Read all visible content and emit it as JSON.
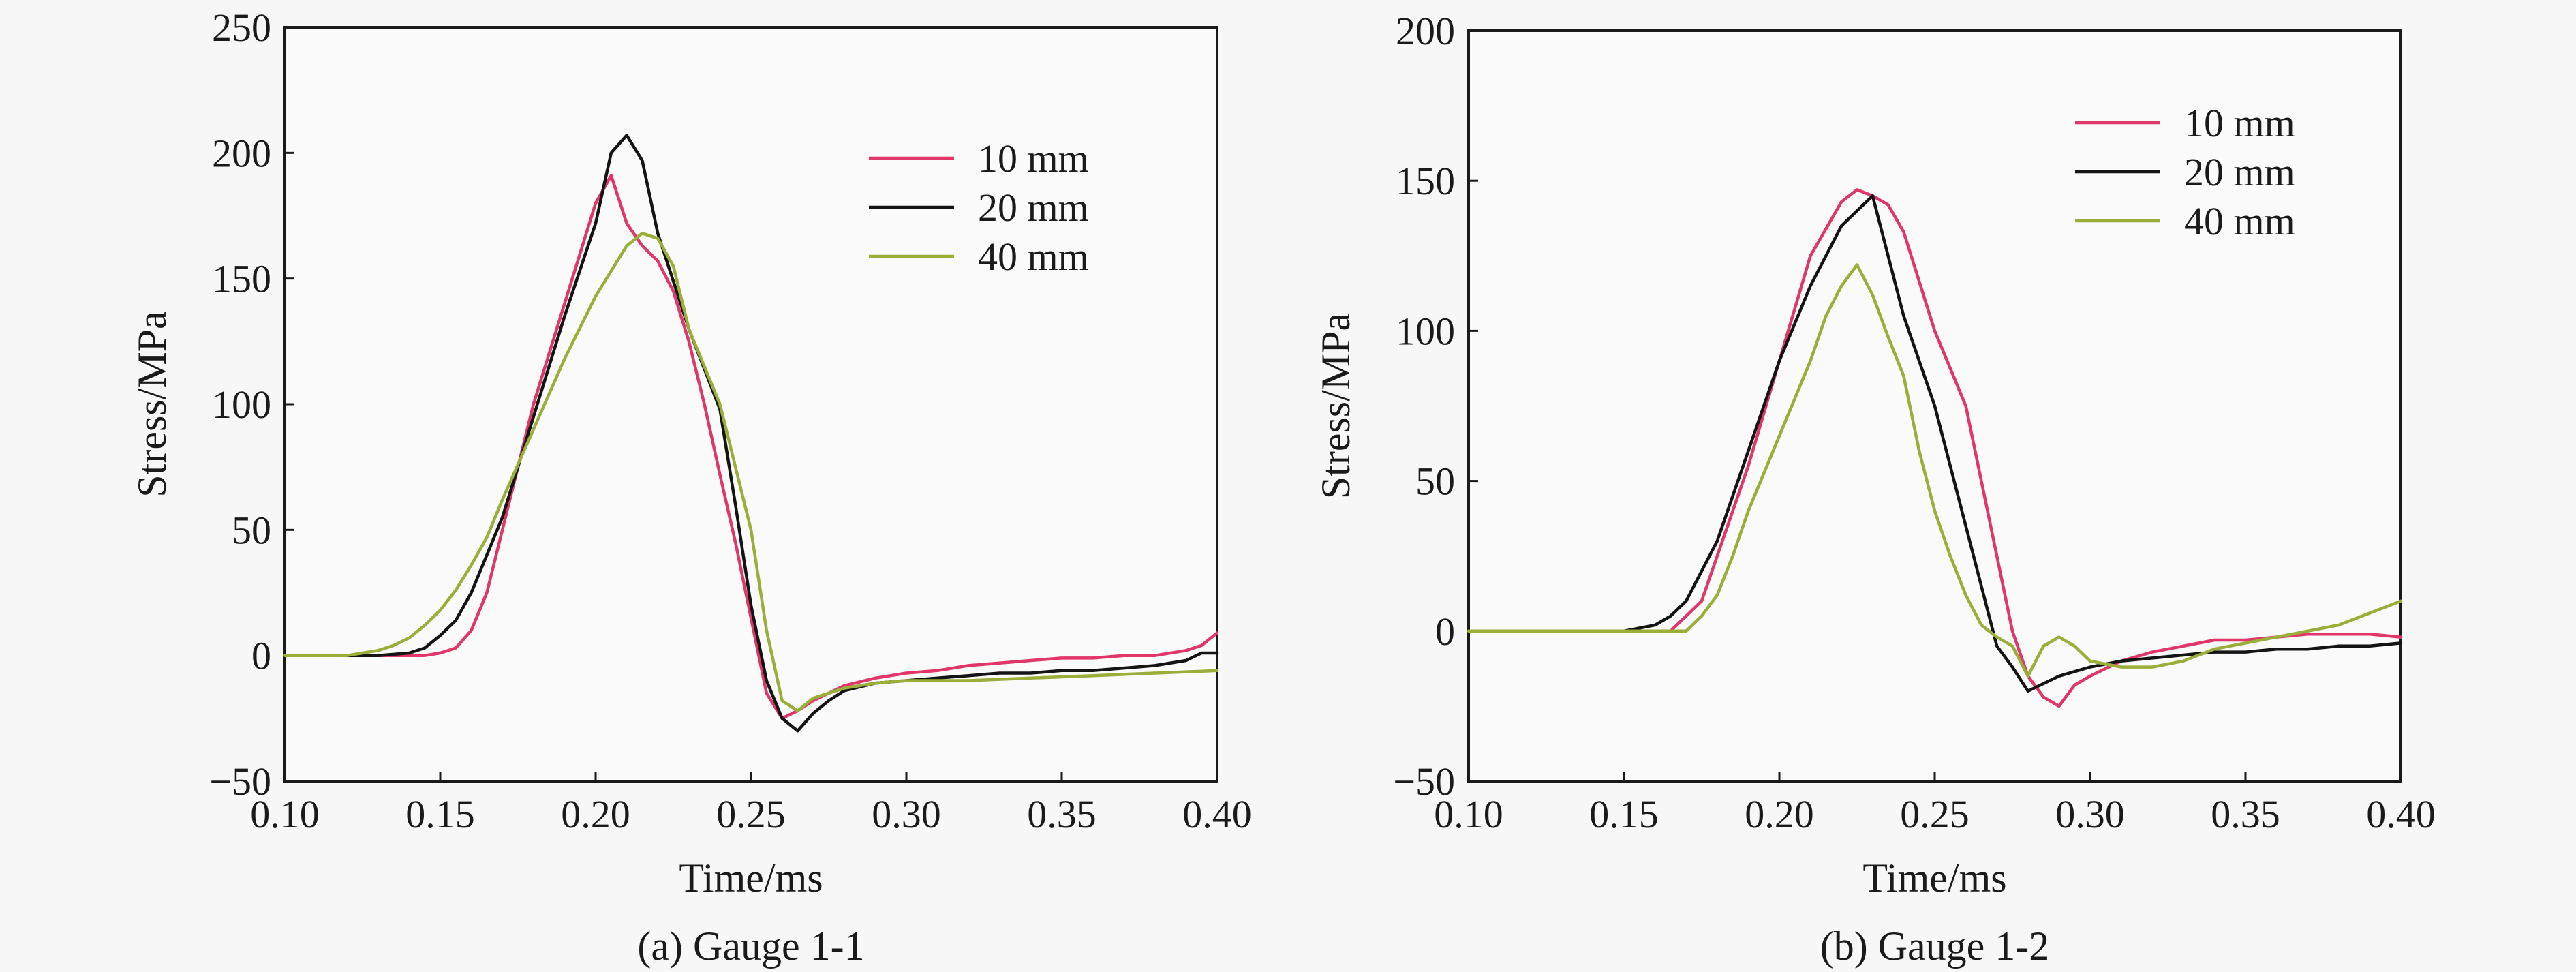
{
  "colors": {
    "10 mm": "#e0366a",
    "20 mm": "#141414",
    "40 mm": "#9aae3a"
  },
  "chart_data": [
    {
      "type": "line",
      "caption": "(a) Gauge 1-1",
      "xlabel": "Time/ms",
      "ylabel": "Stress/MPa",
      "xlim": [
        0.1,
        0.4
      ],
      "ylim": [
        -50,
        250
      ],
      "xticks": [
        "0.10",
        "0.15",
        "0.20",
        "0.25",
        "0.30",
        "0.35",
        "0.40"
      ],
      "yticks": [
        "−50",
        "0",
        "50",
        "100",
        "150",
        "200",
        "250"
      ],
      "grid": false,
      "legend_position": "top-right",
      "series": [
        {
          "name": "10 mm",
          "points": [
            [
              0.1,
              0
            ],
            [
              0.13,
              0
            ],
            [
              0.145,
              0
            ],
            [
              0.15,
              1
            ],
            [
              0.155,
              3
            ],
            [
              0.16,
              10
            ],
            [
              0.165,
              25
            ],
            [
              0.17,
              50
            ],
            [
              0.18,
              100
            ],
            [
              0.19,
              140
            ],
            [
              0.2,
              180
            ],
            [
              0.205,
              191
            ],
            [
              0.21,
              172
            ],
            [
              0.215,
              163
            ],
            [
              0.22,
              157
            ],
            [
              0.225,
              145
            ],
            [
              0.23,
              125
            ],
            [
              0.235,
              100
            ],
            [
              0.24,
              72
            ],
            [
              0.245,
              45
            ],
            [
              0.25,
              15
            ],
            [
              0.255,
              -15
            ],
            [
              0.26,
              -25
            ],
            [
              0.265,
              -22
            ],
            [
              0.27,
              -18
            ],
            [
              0.28,
              -12
            ],
            [
              0.29,
              -9
            ],
            [
              0.3,
              -7
            ],
            [
              0.31,
              -6
            ],
            [
              0.32,
              -4
            ],
            [
              0.33,
              -3
            ],
            [
              0.34,
              -2
            ],
            [
              0.35,
              -1
            ],
            [
              0.36,
              -1
            ],
            [
              0.37,
              0
            ],
            [
              0.38,
              0
            ],
            [
              0.39,
              2
            ],
            [
              0.395,
              4
            ],
            [
              0.4,
              9
            ]
          ]
        },
        {
          "name": "20 mm",
          "points": [
            [
              0.1,
              0
            ],
            [
              0.13,
              0
            ],
            [
              0.14,
              1
            ],
            [
              0.145,
              3
            ],
            [
              0.15,
              8
            ],
            [
              0.155,
              14
            ],
            [
              0.16,
              25
            ],
            [
              0.17,
              55
            ],
            [
              0.18,
              95
            ],
            [
              0.19,
              135
            ],
            [
              0.2,
              172
            ],
            [
              0.205,
              200
            ],
            [
              0.21,
              207
            ],
            [
              0.215,
              197
            ],
            [
              0.22,
              168
            ],
            [
              0.23,
              130
            ],
            [
              0.24,
              98
            ],
            [
              0.245,
              60
            ],
            [
              0.25,
              20
            ],
            [
              0.255,
              -10
            ],
            [
              0.26,
              -25
            ],
            [
              0.265,
              -30
            ],
            [
              0.27,
              -23
            ],
            [
              0.275,
              -18
            ],
            [
              0.28,
              -14
            ],
            [
              0.29,
              -11
            ],
            [
              0.3,
              -10
            ],
            [
              0.31,
              -9
            ],
            [
              0.32,
              -8
            ],
            [
              0.33,
              -7
            ],
            [
              0.34,
              -7
            ],
            [
              0.35,
              -6
            ],
            [
              0.36,
              -6
            ],
            [
              0.37,
              -5
            ],
            [
              0.38,
              -4
            ],
            [
              0.39,
              -2
            ],
            [
              0.395,
              1
            ],
            [
              0.4,
              1
            ]
          ]
        },
        {
          "name": "40 mm",
          "points": [
            [
              0.1,
              0
            ],
            [
              0.12,
              0
            ],
            [
              0.125,
              1
            ],
            [
              0.13,
              2
            ],
            [
              0.135,
              4
            ],
            [
              0.14,
              7
            ],
            [
              0.145,
              12
            ],
            [
              0.15,
              18
            ],
            [
              0.155,
              26
            ],
            [
              0.16,
              36
            ],
            [
              0.165,
              47
            ],
            [
              0.17,
              62
            ],
            [
              0.18,
              90
            ],
            [
              0.19,
              118
            ],
            [
              0.2,
              143
            ],
            [
              0.21,
              163
            ],
            [
              0.215,
              168
            ],
            [
              0.22,
              166
            ],
            [
              0.225,
              155
            ],
            [
              0.23,
              130
            ],
            [
              0.24,
              100
            ],
            [
              0.25,
              50
            ],
            [
              0.255,
              10
            ],
            [
              0.26,
              -18
            ],
            [
              0.265,
              -22
            ],
            [
              0.27,
              -17
            ],
            [
              0.28,
              -13
            ],
            [
              0.29,
              -11
            ],
            [
              0.3,
              -10
            ],
            [
              0.32,
              -10
            ],
            [
              0.34,
              -9
            ],
            [
              0.36,
              -8
            ],
            [
              0.38,
              -7
            ],
            [
              0.4,
              -6
            ]
          ]
        }
      ]
    },
    {
      "type": "line",
      "caption": "(b) Gauge 1-2",
      "xlabel": "Time/ms",
      "ylabel": "Stress/MPa",
      "xlim": [
        0.1,
        0.4
      ],
      "ylim": [
        -50,
        200
      ],
      "xticks": [
        "0.10",
        "0.15",
        "0.20",
        "0.25",
        "0.30",
        "0.35",
        "0.40"
      ],
      "yticks": [
        "−50",
        "0",
        "50",
        "100",
        "150",
        "200"
      ],
      "grid": false,
      "legend_position": "top-right",
      "series": [
        {
          "name": "10 mm",
          "points": [
            [
              0.1,
              0
            ],
            [
              0.16,
              0
            ],
            [
              0.165,
              0
            ],
            [
              0.17,
              5
            ],
            [
              0.175,
              10
            ],
            [
              0.18,
              25
            ],
            [
              0.19,
              55
            ],
            [
              0.2,
              90
            ],
            [
              0.21,
              125
            ],
            [
              0.22,
              143
            ],
            [
              0.225,
              147
            ],
            [
              0.23,
              145
            ],
            [
              0.235,
              142
            ],
            [
              0.24,
              133
            ],
            [
              0.25,
              100
            ],
            [
              0.26,
              75
            ],
            [
              0.265,
              50
            ],
            [
              0.27,
              25
            ],
            [
              0.275,
              0
            ],
            [
              0.28,
              -15
            ],
            [
              0.285,
              -22
            ],
            [
              0.29,
              -25
            ],
            [
              0.295,
              -18
            ],
            [
              0.3,
              -15
            ],
            [
              0.31,
              -10
            ],
            [
              0.32,
              -7
            ],
            [
              0.33,
              -5
            ],
            [
              0.34,
              -3
            ],
            [
              0.35,
              -3
            ],
            [
              0.36,
              -2
            ],
            [
              0.37,
              -1
            ],
            [
              0.38,
              -1
            ],
            [
              0.39,
              -1
            ],
            [
              0.4,
              -2
            ]
          ]
        },
        {
          "name": "20 mm",
          "points": [
            [
              0.1,
              0
            ],
            [
              0.15,
              0
            ],
            [
              0.16,
              2
            ],
            [
              0.165,
              5
            ],
            [
              0.17,
              10
            ],
            [
              0.18,
              30
            ],
            [
              0.19,
              60
            ],
            [
              0.2,
              90
            ],
            [
              0.21,
              115
            ],
            [
              0.22,
              135
            ],
            [
              0.225,
              140
            ],
            [
              0.23,
              145
            ],
            [
              0.24,
              105
            ],
            [
              0.25,
              75
            ],
            [
              0.26,
              35
            ],
            [
              0.27,
              -5
            ],
            [
              0.275,
              -12
            ],
            [
              0.28,
              -20
            ],
            [
              0.29,
              -15
            ],
            [
              0.3,
              -12
            ],
            [
              0.31,
              -10
            ],
            [
              0.32,
              -9
            ],
            [
              0.33,
              -8
            ],
            [
              0.34,
              -7
            ],
            [
              0.35,
              -7
            ],
            [
              0.36,
              -6
            ],
            [
              0.37,
              -6
            ],
            [
              0.38,
              -5
            ],
            [
              0.39,
              -5
            ],
            [
              0.4,
              -4
            ]
          ]
        },
        {
          "name": "40 mm",
          "points": [
            [
              0.1,
              0
            ],
            [
              0.165,
              0
            ],
            [
              0.17,
              0
            ],
            [
              0.175,
              5
            ],
            [
              0.18,
              12
            ],
            [
              0.185,
              25
            ],
            [
              0.19,
              40
            ],
            [
              0.2,
              65
            ],
            [
              0.21,
              90
            ],
            [
              0.215,
              105
            ],
            [
              0.22,
              115
            ],
            [
              0.225,
              122
            ],
            [
              0.23,
              112
            ],
            [
              0.235,
              98
            ],
            [
              0.24,
              85
            ],
            [
              0.245,
              60
            ],
            [
              0.25,
              40
            ],
            [
              0.255,
              25
            ],
            [
              0.26,
              12
            ],
            [
              0.265,
              2
            ],
            [
              0.27,
              -2
            ],
            [
              0.275,
              -5
            ],
            [
              0.28,
              -15
            ],
            [
              0.285,
              -5
            ],
            [
              0.29,
              -2
            ],
            [
              0.295,
              -5
            ],
            [
              0.3,
              -10
            ],
            [
              0.31,
              -12
            ],
            [
              0.32,
              -12
            ],
            [
              0.33,
              -10
            ],
            [
              0.34,
              -6
            ],
            [
              0.35,
              -4
            ],
            [
              0.36,
              -2
            ],
            [
              0.37,
              0
            ],
            [
              0.38,
              2
            ],
            [
              0.39,
              6
            ],
            [
              0.4,
              10
            ]
          ]
        }
      ]
    }
  ]
}
